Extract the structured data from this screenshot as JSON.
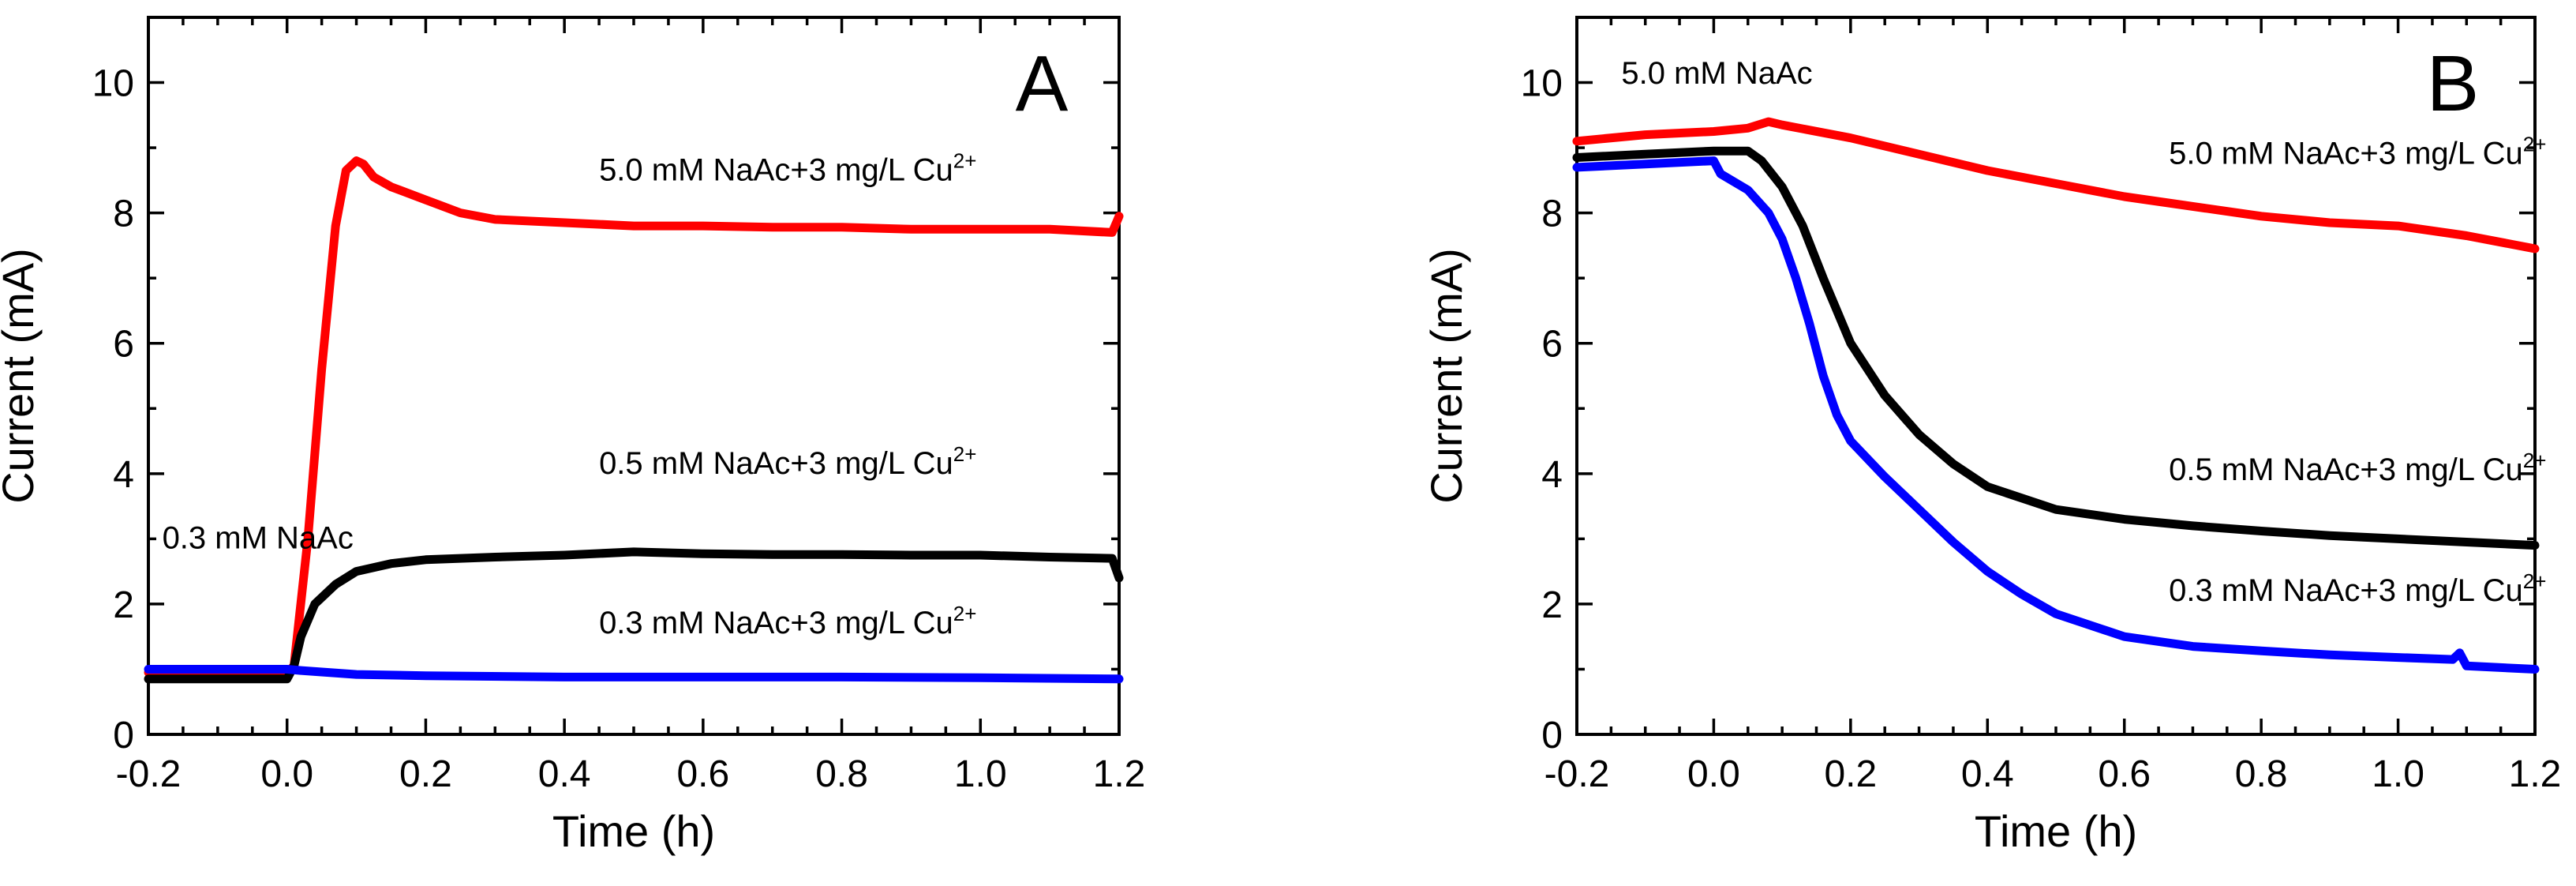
{
  "chart_data": [
    {
      "type": "line",
      "panel_label": "A",
      "xlabel": "Time (h)",
      "ylabel": "Current (mA)",
      "xlim": [
        -0.2,
        1.2
      ],
      "ylim": [
        0,
        11
      ],
      "xticks": [
        -0.2,
        0.0,
        0.2,
        0.4,
        0.6,
        0.8,
        1.0,
        1.2
      ],
      "xtick_labels": [
        "-0.2",
        "0.0",
        "0.2",
        "0.4",
        "0.6",
        "0.8",
        "1.0",
        "1.2"
      ],
      "yticks": [
        0,
        2,
        4,
        6,
        8,
        10
      ],
      "ytick_labels": [
        "0",
        "2",
        "4",
        "6",
        "8",
        "10"
      ],
      "annotations": [
        {
          "text": "5.0 mM NaAc+3 mg/L Cu",
          "sup": "2+",
          "x": 0.45,
          "y": 8.5
        },
        {
          "text": "0.5 mM NaAc+3 mg/L Cu",
          "sup": "2+",
          "x": 0.45,
          "y": 4.0
        },
        {
          "text": "0.3 mM NaAc",
          "sup": "",
          "x": -0.18,
          "y": 2.85
        },
        {
          "text": "0.3 mM NaAc+3 mg/L Cu",
          "sup": "2+",
          "x": 0.45,
          "y": 1.55
        }
      ],
      "series": [
        {
          "name": "5.0 mM NaAc+3 mg/L Cu2+",
          "color": "#ff0000",
          "x": [
            -0.2,
            0.0,
            0.01,
            0.03,
            0.05,
            0.07,
            0.085,
            0.1,
            0.11,
            0.125,
            0.15,
            0.2,
            0.25,
            0.3,
            0.4,
            0.5,
            0.6,
            0.7,
            0.8,
            0.9,
            1.0,
            1.1,
            1.19,
            1.2
          ],
          "y": [
            0.95,
            0.95,
            1.05,
            3.0,
            5.6,
            7.8,
            8.65,
            8.8,
            8.75,
            8.55,
            8.4,
            8.2,
            8.0,
            7.9,
            7.85,
            7.8,
            7.8,
            7.78,
            7.78,
            7.75,
            7.75,
            7.75,
            7.7,
            7.95
          ]
        },
        {
          "name": "0.5 mM NaAc+3 mg/L Cu2+",
          "color": "#000000",
          "x": [
            -0.2,
            0.0,
            0.01,
            0.02,
            0.04,
            0.07,
            0.1,
            0.15,
            0.2,
            0.3,
            0.4,
            0.5,
            0.6,
            0.7,
            0.8,
            0.9,
            1.0,
            1.1,
            1.19,
            1.2
          ],
          "y": [
            0.85,
            0.85,
            1.05,
            1.5,
            2.0,
            2.3,
            2.5,
            2.62,
            2.68,
            2.72,
            2.75,
            2.8,
            2.77,
            2.76,
            2.76,
            2.75,
            2.75,
            2.72,
            2.7,
            2.4
          ]
        },
        {
          "name": "0.3 mM NaAc+3 mg/L Cu2+",
          "color": "#0000ff",
          "x": [
            -0.2,
            0.0,
            0.02,
            0.1,
            0.2,
            0.4,
            0.6,
            0.8,
            1.0,
            1.2
          ],
          "y": [
            1.0,
            1.0,
            0.98,
            0.92,
            0.9,
            0.88,
            0.88,
            0.88,
            0.87,
            0.85
          ]
        }
      ]
    },
    {
      "type": "line",
      "panel_label": "B",
      "xlabel": "Time (h)",
      "ylabel": "Current (mA)",
      "xlim": [
        -0.2,
        1.2
      ],
      "ylim": [
        0,
        11
      ],
      "xticks": [
        -0.2,
        0.0,
        0.2,
        0.4,
        0.6,
        0.8,
        1.0,
        1.2
      ],
      "xtick_labels": [
        "-0.2",
        "0.0",
        "0.2",
        "0.4",
        "0.6",
        "0.8",
        "1.0",
        "1.2"
      ],
      "yticks": [
        0,
        2,
        4,
        6,
        8,
        10
      ],
      "ytick_labels": [
        "0",
        "2",
        "4",
        "6",
        "8",
        "10"
      ],
      "annotations": [
        {
          "text": "5.0 mM NaAc",
          "sup": "",
          "x": -0.135,
          "y": 9.98
        },
        {
          "text": "5.0 mM NaAc+3 mg/L Cu",
          "sup": "2+",
          "x": 0.665,
          "y": 8.75
        },
        {
          "text": "0.5 mM NaAc+3 mg/L Cu",
          "sup": "2+",
          "x": 0.665,
          "y": 3.9
        },
        {
          "text": "0.3 mM NaAc+3 mg/L Cu",
          "sup": "2+",
          "x": 0.665,
          "y": 2.05
        }
      ],
      "series": [
        {
          "name": "5.0 mM NaAc+3 mg/L Cu2+",
          "color": "#ff0000",
          "x": [
            -0.2,
            -0.1,
            0.0,
            0.05,
            0.08,
            0.1,
            0.2,
            0.3,
            0.4,
            0.5,
            0.6,
            0.7,
            0.8,
            0.9,
            1.0,
            1.1,
            1.2
          ],
          "y": [
            9.1,
            9.2,
            9.25,
            9.3,
            9.4,
            9.35,
            9.15,
            8.9,
            8.65,
            8.45,
            8.25,
            8.1,
            7.95,
            7.85,
            7.8,
            7.65,
            7.45
          ]
        },
        {
          "name": "0.5 mM NaAc+3 mg/L Cu2+",
          "color": "#000000",
          "x": [
            -0.2,
            -0.1,
            0.0,
            0.05,
            0.07,
            0.1,
            0.13,
            0.16,
            0.2,
            0.25,
            0.3,
            0.35,
            0.4,
            0.5,
            0.6,
            0.7,
            0.8,
            0.9,
            1.0,
            1.1,
            1.2
          ],
          "y": [
            8.85,
            8.9,
            8.95,
            8.95,
            8.8,
            8.4,
            7.8,
            7.0,
            6.0,
            5.2,
            4.6,
            4.15,
            3.8,
            3.45,
            3.3,
            3.2,
            3.12,
            3.05,
            3.0,
            2.95,
            2.9
          ]
        },
        {
          "name": "0.3 mM NaAc+3 mg/L Cu2+",
          "color": "#0000ff",
          "x": [
            -0.2,
            -0.1,
            0.0,
            0.01,
            0.05,
            0.08,
            0.1,
            0.12,
            0.14,
            0.16,
            0.18,
            0.2,
            0.25,
            0.3,
            0.35,
            0.4,
            0.45,
            0.5,
            0.6,
            0.7,
            0.8,
            0.9,
            1.0,
            1.08,
            1.09,
            1.1,
            1.2
          ],
          "y": [
            8.7,
            8.75,
            8.8,
            8.6,
            8.35,
            8.0,
            7.6,
            7.0,
            6.3,
            5.5,
            4.9,
            4.5,
            3.95,
            3.45,
            2.95,
            2.5,
            2.15,
            1.85,
            1.5,
            1.35,
            1.28,
            1.22,
            1.18,
            1.15,
            1.25,
            1.05,
            1.0
          ]
        }
      ]
    }
  ]
}
